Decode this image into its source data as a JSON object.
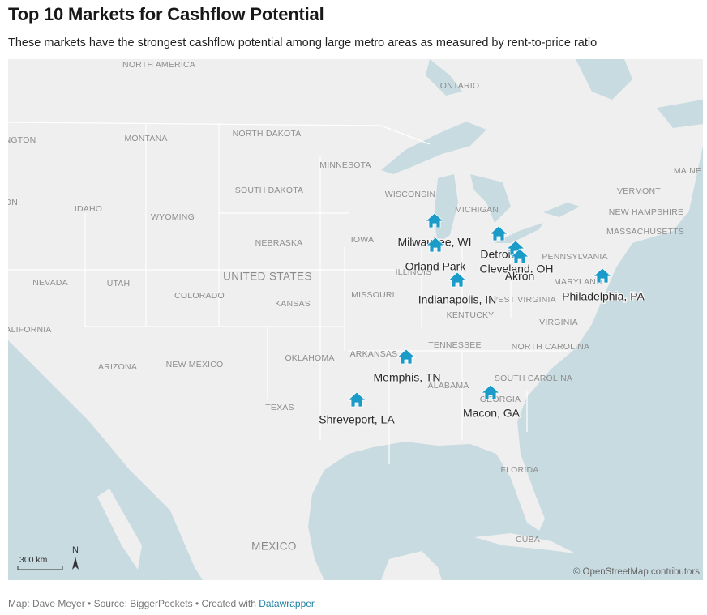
{
  "header": {
    "title": "Top 10 Markets for Cashflow Potential",
    "subtitle": "These markets have the strongest cashflow potential among large metro areas as measured by rent-to-price ratio"
  },
  "map": {
    "base_labels": [
      "NORTH AMERICA",
      "ONTARIO",
      "NGTON",
      "MONTANA",
      "NORTH DAKOTA",
      "MINNESOTA",
      "MAINE",
      "SOUTH DAKOTA",
      "WISCONSIN",
      "VERMONT",
      "ON",
      "IDAHO",
      "MICHIGAN",
      "NEW HAMPSHIRE",
      "WYOMING",
      "MASSACHUSETTS",
      "NEBRASKA",
      "IOWA",
      "PENNSYLVANIA",
      "ILLINOIS",
      "NEVADA",
      "UTAH",
      "MARYLAND",
      "COLORADO",
      "MISSOURI",
      "KANSAS",
      "WEST VIRGINIA",
      "KENTUCKY",
      "VIRGINIA",
      "ALIFORNIA",
      "TENNESSEE",
      "NORTH CAROLINA",
      "OKLAHOMA",
      "ARKANSAS",
      "ARIZONA",
      "NEW MEXICO",
      "SOUTH CAROLINA",
      "ALABAMA",
      "GEORGIA",
      "TEXAS",
      "FLORIDA",
      "CUBA"
    ],
    "country_labels": [
      "UNITED STATES",
      "MEXICO"
    ],
    "markers": [
      "Milwaukee, WI",
      "Orland Park",
      "Detroit",
      "Cleveland, OH",
      "Akron",
      "Indianapolis, IN",
      "Philadelphia, PA",
      "Memphis, TN",
      "Shreveport, LA",
      "Macon, GA"
    ],
    "scale_label": "300 km",
    "north_label": "N",
    "attribution": "© OpenStreetMap contributors"
  },
  "footer": {
    "text": "Map: Dave Meyer • Source: BiggerPockets • Created with",
    "link": "Datawrapper"
  }
}
